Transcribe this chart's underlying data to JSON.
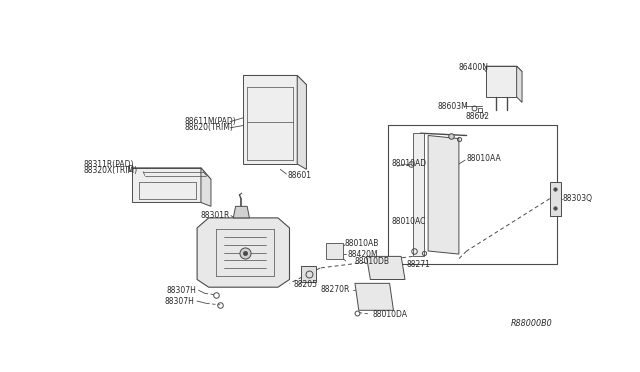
{
  "bg_color": "#ffffff",
  "lc": "#4a4a4a",
  "tc": "#2a2a2a",
  "ref_code": "R88000B0",
  "labels": {
    "88611M_PAD": "88611M(PAD)",
    "88620_TRIM": "88620(TRIM)",
    "88311R_PAD": "88311R(PAD)",
    "88320X_TRIM": "88320X(TRIM)",
    "88601": "88601",
    "86400N": "86400N",
    "88603M": "88603M",
    "88602": "88602",
    "88010AD": "88010AD",
    "88010AA": "88010AA",
    "88303Q": "88303Q",
    "88010AC": "88010AC",
    "88301R": "88301R",
    "88010AB": "88010AB",
    "88420M": "88420M",
    "88010DB": "88010DB",
    "88205": "88205",
    "88271": "88271",
    "88270R": "88270R",
    "88010DA": "88010DA",
    "88307H_1": "88307H",
    "88307H_2": "88307H"
  },
  "fs": 5.5
}
